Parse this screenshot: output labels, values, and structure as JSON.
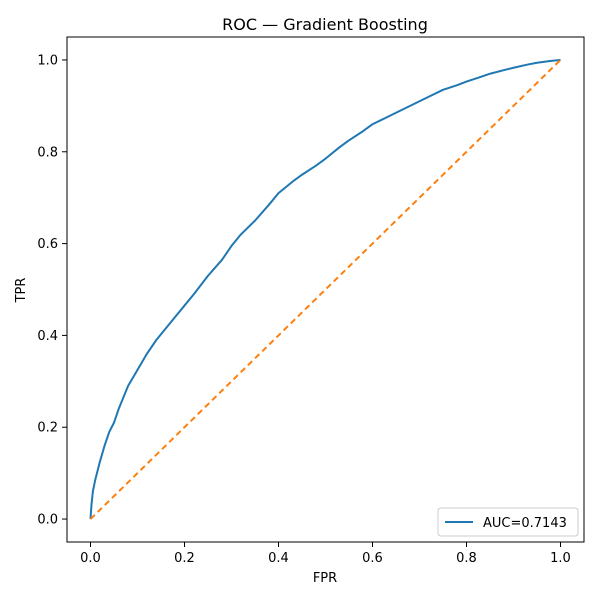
{
  "chart_data": {
    "type": "line",
    "title": "ROC — Gradient Boosting",
    "xlabel": "FPR",
    "ylabel": "TPR",
    "xlim": [
      -0.05,
      1.05
    ],
    "ylim": [
      -0.05,
      1.05
    ],
    "xticks": [
      0.0,
      0.2,
      0.4,
      0.6,
      0.8,
      1.0
    ],
    "yticks": [
      0.0,
      0.2,
      0.4,
      0.6,
      0.8,
      1.0
    ],
    "xtick_labels": [
      "0.0",
      "0.2",
      "0.4",
      "0.6",
      "0.8",
      "1.0"
    ],
    "ytick_labels": [
      "0.0",
      "0.2",
      "0.4",
      "0.6",
      "0.8",
      "1.0"
    ],
    "grid": false,
    "legend_position": "bottom-right",
    "series": [
      {
        "name": "AUC=0.7143",
        "color": "#1f77b4",
        "style": "solid",
        "x": [
          0.0,
          0.002,
          0.005,
          0.01,
          0.015,
          0.02,
          0.03,
          0.04,
          0.05,
          0.06,
          0.07,
          0.08,
          0.1,
          0.12,
          0.14,
          0.16,
          0.18,
          0.2,
          0.22,
          0.25,
          0.28,
          0.3,
          0.32,
          0.35,
          0.38,
          0.4,
          0.43,
          0.45,
          0.48,
          0.5,
          0.53,
          0.55,
          0.58,
          0.6,
          0.63,
          0.65,
          0.68,
          0.7,
          0.73,
          0.75,
          0.78,
          0.8,
          0.83,
          0.85,
          0.88,
          0.9,
          0.93,
          0.95,
          0.98,
          1.0
        ],
        "y": [
          0.0,
          0.03,
          0.06,
          0.085,
          0.105,
          0.125,
          0.16,
          0.19,
          0.21,
          0.24,
          0.265,
          0.29,
          0.325,
          0.36,
          0.39,
          0.415,
          0.44,
          0.465,
          0.49,
          0.53,
          0.565,
          0.595,
          0.62,
          0.65,
          0.685,
          0.71,
          0.735,
          0.75,
          0.77,
          0.785,
          0.81,
          0.825,
          0.845,
          0.86,
          0.875,
          0.885,
          0.9,
          0.91,
          0.925,
          0.935,
          0.945,
          0.953,
          0.963,
          0.97,
          0.978,
          0.983,
          0.99,
          0.994,
          0.998,
          1.0
        ]
      },
      {
        "name": "",
        "color": "#ff7f0e",
        "style": "dashed",
        "x": [
          0.0,
          1.0
        ],
        "y": [
          0.0,
          1.0
        ]
      }
    ]
  }
}
